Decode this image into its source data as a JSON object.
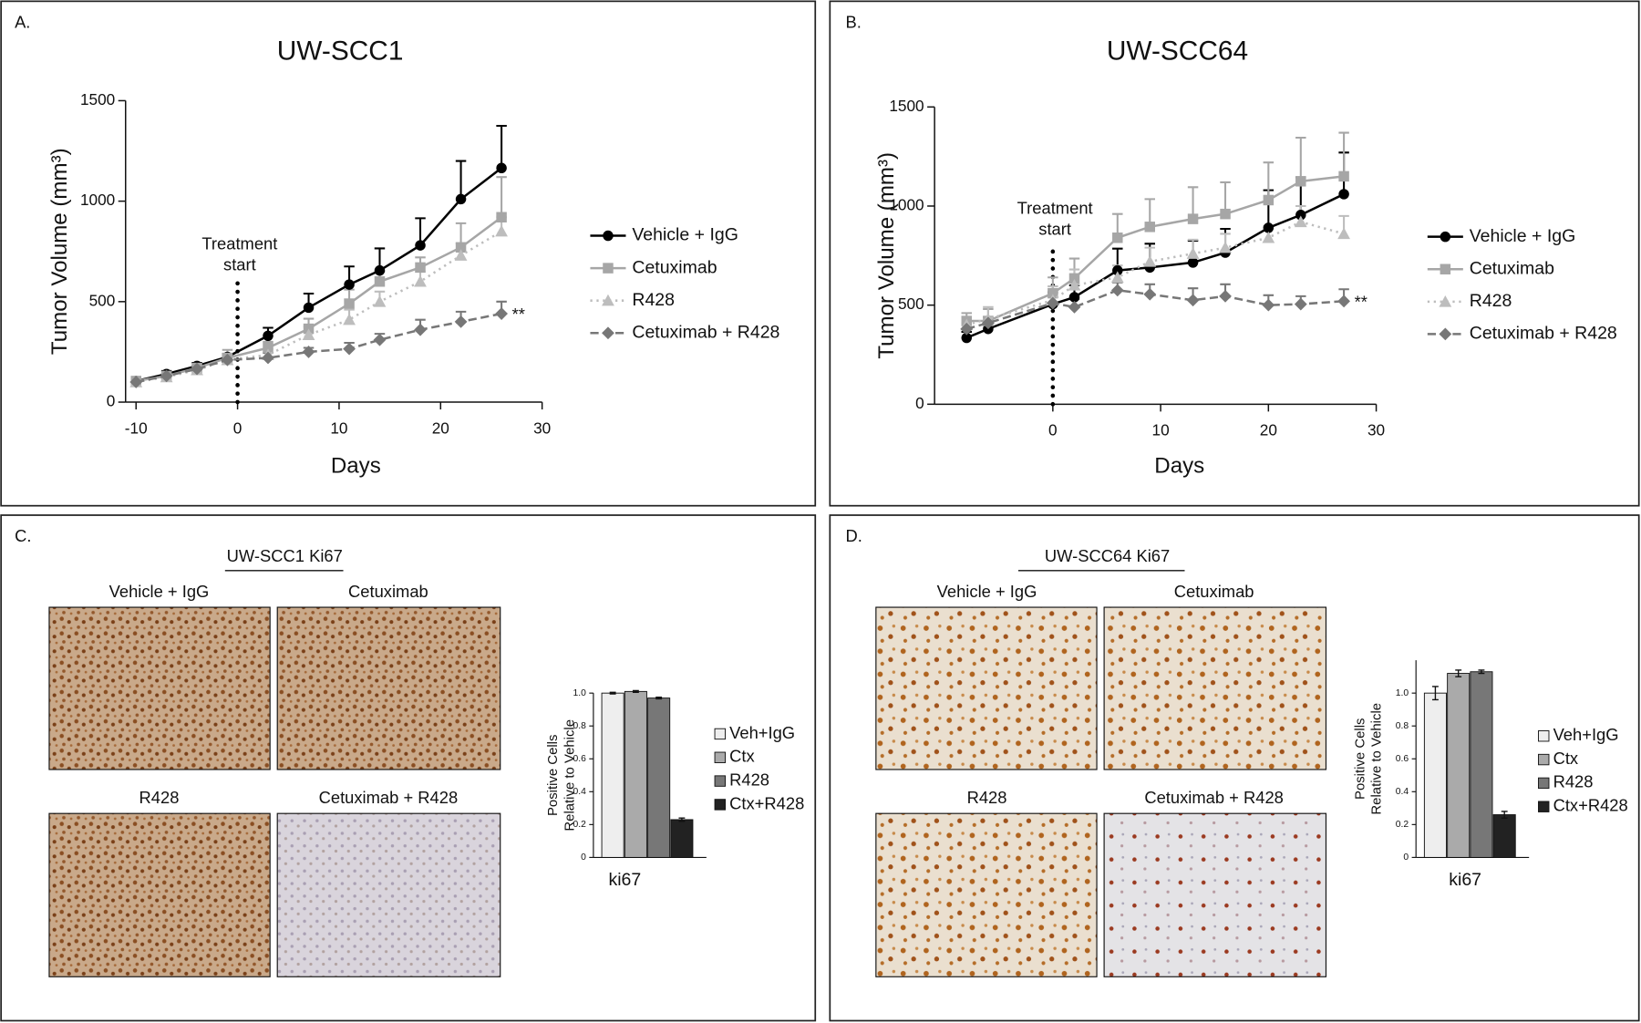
{
  "panels": [
    "A.",
    "B.",
    "C.",
    "D."
  ],
  "chart_data": [
    {
      "type": "line",
      "title": "UW-SCC1",
      "xlabel": "Days",
      "ylabel": "Tumor Volume (mm³)",
      "x": [
        -10,
        -7,
        -4,
        -1,
        3,
        7,
        11,
        14,
        18,
        22,
        26
      ],
      "xlim": [
        -10,
        30
      ],
      "xticks": [
        -10,
        0,
        10,
        20,
        30
      ],
      "ylim": [
        0,
        1500
      ],
      "yticks": [
        0,
        500,
        1000,
        1500
      ],
      "vline": 0,
      "annotations": [
        "Treatment",
        "start",
        "**"
      ],
      "series": [
        {
          "name": "Vehicle + IgG",
          "color": "#000000",
          "marker": "circle",
          "dash": "solid",
          "values": [
            105,
            140,
            180,
            225,
            330,
            470,
            585,
            655,
            780,
            1010,
            1165
          ],
          "errors": [
            20,
            15,
            15,
            15,
            40,
            70,
            90,
            110,
            135,
            190,
            210
          ]
        },
        {
          "name": "Cetuximab",
          "color": "#a6a6a6",
          "marker": "square",
          "dash": "solid",
          "values": [
            105,
            130,
            170,
            220,
            270,
            365,
            490,
            600,
            670,
            770,
            920
          ],
          "errors": [
            10,
            10,
            10,
            40,
            30,
            50,
            70,
            50,
            50,
            120,
            200
          ]
        },
        {
          "name": "R428",
          "color": "#bdbdbd",
          "marker": "triangle",
          "dash": "dotted",
          "values": [
            100,
            125,
            160,
            210,
            235,
            335,
            410,
            500,
            600,
            730,
            850
          ],
          "errors": [
            10,
            10,
            10,
            20,
            30,
            40,
            50,
            50,
            50,
            60,
            70
          ]
        },
        {
          "name": "Cetuximab + R428",
          "color": "#777777",
          "marker": "diamond",
          "dash": "dashed",
          "values": [
            100,
            130,
            165,
            210,
            220,
            250,
            265,
            310,
            360,
            400,
            440
          ],
          "errors": [
            10,
            10,
            10,
            20,
            25,
            20,
            30,
            30,
            50,
            50,
            60
          ]
        }
      ]
    },
    {
      "type": "line",
      "title": "UW-SCC64",
      "xlabel": "Days",
      "ylabel": "Tumor Volume (mm³)",
      "x": [
        -8,
        -6,
        0,
        2,
        6,
        9,
        13,
        16,
        20,
        23,
        27
      ],
      "xlim": [
        -10,
        30
      ],
      "xticks": [
        0,
        10,
        20,
        30
      ],
      "ylim": [
        0,
        1500
      ],
      "yticks": [
        0,
        500,
        1000,
        1500
      ],
      "vline": 0,
      "annotations": [
        "Treatment",
        "start",
        "**"
      ],
      "series": [
        {
          "name": "Vehicle + IgG",
          "color": "#000000",
          "marker": "circle",
          "dash": "solid",
          "values": [
            335,
            380,
            505,
            540,
            675,
            690,
            715,
            765,
            890,
            955,
            1060
          ],
          "errors": [
            30,
            30,
            60,
            60,
            110,
            120,
            110,
            120,
            190,
            190,
            210
          ]
        },
        {
          "name": "Cetuximab",
          "color": "#a6a6a6",
          "marker": "square",
          "dash": "solid",
          "values": [
            420,
            420,
            560,
            635,
            840,
            895,
            935,
            960,
            1030,
            1125,
            1150
          ],
          "errors": [
            40,
            60,
            80,
            100,
            120,
            140,
            160,
            160,
            190,
            220,
            220
          ]
        },
        {
          "name": "R428",
          "color": "#bdbdbd",
          "marker": "triangle",
          "dash": "dotted",
          "values": [
            400,
            430,
            525,
            600,
            640,
            720,
            760,
            790,
            840,
            920,
            860
          ],
          "errors": [
            40,
            60,
            70,
            80,
            60,
            70,
            70,
            70,
            60,
            80,
            90
          ]
        },
        {
          "name": "Cetuximab + R428",
          "color": "#777777",
          "marker": "diamond",
          "dash": "dashed",
          "values": [
            380,
            410,
            510,
            490,
            575,
            555,
            525,
            545,
            500,
            505,
            520
          ],
          "errors": [
            30,
            30,
            50,
            40,
            40,
            50,
            60,
            60,
            50,
            40,
            60
          ]
        }
      ]
    },
    {
      "type": "bar",
      "ylabel": [
        "Positive Cells",
        "Relative to Vehicle"
      ],
      "categories": [
        "ki67"
      ],
      "ylim": [
        0,
        1
      ],
      "yticks": [
        0,
        0.2,
        0.4,
        0.6,
        0.8,
        {
          "value": 1,
          "label": "1.0"
        }
      ],
      "series": [
        {
          "name": "Veh+IgG",
          "color": "#eeeeee",
          "values": [
            1.0
          ],
          "errors": [
            0.005
          ]
        },
        {
          "name": "Ctx",
          "color": "#aaaaaa",
          "values": [
            1.01
          ],
          "errors": [
            0.005
          ]
        },
        {
          "name": "R428",
          "color": "#777777",
          "values": [
            0.97
          ],
          "errors": [
            0.005
          ]
        },
        {
          "name": "Ctx+R428",
          "color": "#222222",
          "values": [
            0.23
          ],
          "errors": [
            0.01
          ]
        }
      ]
    },
    {
      "type": "bar",
      "ylabel": [
        "Positive Cells",
        "Relative to Vehicle"
      ],
      "categories": [
        "ki67"
      ],
      "ylim": [
        0,
        1.2
      ],
      "yticks": [
        0,
        0.2,
        0.4,
        0.6,
        0.8,
        {
          "value": 1,
          "label": "1.0"
        }
      ],
      "series": [
        {
          "name": "Veh+IgG",
          "color": "#eeeeee",
          "values": [
            1.0
          ],
          "errors": [
            0.04
          ]
        },
        {
          "name": "Ctx",
          "color": "#aaaaaa",
          "values": [
            1.12
          ],
          "errors": [
            0.02
          ]
        },
        {
          "name": "R428",
          "color": "#777777",
          "values": [
            1.13
          ],
          "errors": [
            0.01
          ]
        },
        {
          "name": "Ctx+R428",
          "color": "#222222",
          "values": [
            0.26
          ],
          "errors": [
            0.02
          ]
        }
      ]
    }
  ],
  "micrographs": [
    {
      "title": "UW-SCC1  Ki67",
      "images": [
        "Vehicle + IgG",
        "Cetuximab",
        "R428",
        "Cetuximab + R428"
      ]
    },
    {
      "title": "UW-SCC64   Ki67",
      "images": [
        "Vehicle + IgG",
        "Cetuximab",
        "R428",
        "Cetuximab + R428"
      ]
    }
  ]
}
